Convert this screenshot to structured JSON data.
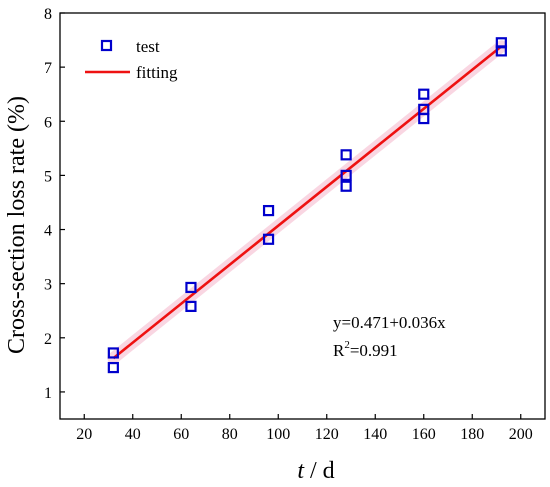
{
  "chart_data": {
    "type": "scatter",
    "xlabel_italic": "t",
    "xlabel_rest": " / d",
    "ylabel": "Cross-section loss rate (%)",
    "xlim": [
      10,
      210
    ],
    "ylim": [
      0.5,
      8
    ],
    "xticks": [
      20,
      40,
      60,
      80,
      100,
      120,
      140,
      160,
      180,
      200
    ],
    "yticks": [
      1,
      2,
      3,
      4,
      5,
      6,
      7,
      8
    ],
    "grid": false,
    "legend_position": "top-left",
    "series": [
      {
        "name": "test",
        "kind": "scatter",
        "marker": "open-square",
        "color": "#0000cc",
        "points": [
          [
            32,
            1.45
          ],
          [
            32,
            1.72
          ],
          [
            64,
            2.58
          ],
          [
            64,
            2.93
          ],
          [
            96,
            3.82
          ],
          [
            96,
            4.35
          ],
          [
            128,
            4.8
          ],
          [
            128,
            5.0
          ],
          [
            128,
            5.38
          ],
          [
            160,
            6.05
          ],
          [
            160,
            6.22
          ],
          [
            160,
            6.5
          ],
          [
            192,
            7.3
          ],
          [
            192,
            7.45
          ]
        ]
      },
      {
        "name": "fitting",
        "kind": "line",
        "color": "#ee1111",
        "x": [
          32,
          192
        ],
        "y": [
          1.623,
          7.383
        ]
      }
    ],
    "annotation": {
      "equation": "y=0.471+0.036x",
      "r2_prefix": "R",
      "r2_sup": "2",
      "r2_value": "=0.991"
    }
  }
}
